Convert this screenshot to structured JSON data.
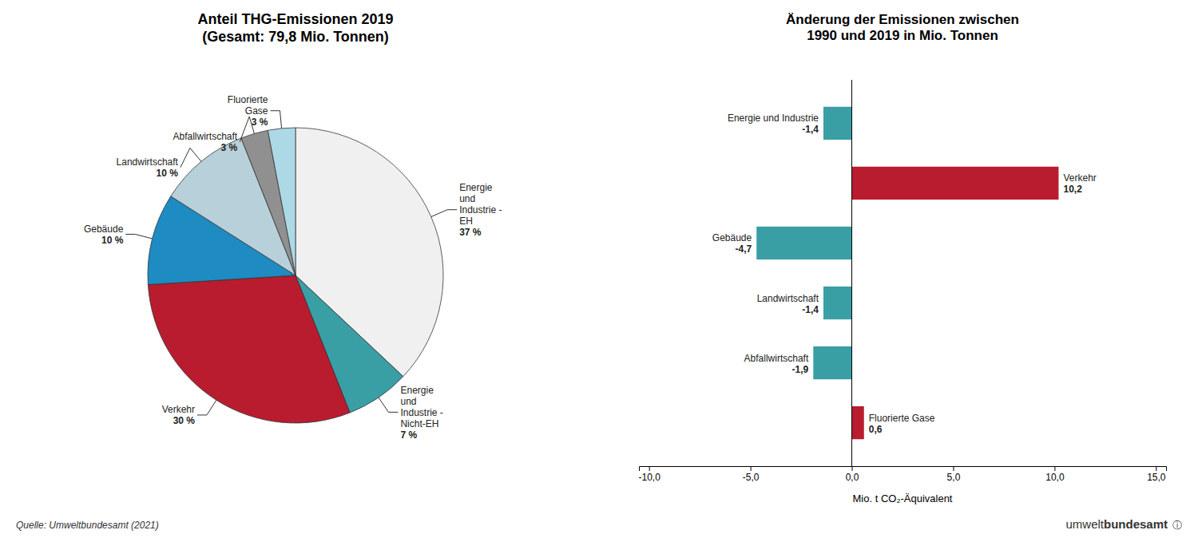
{
  "chart_data": [
    {
      "type": "pie",
      "title": "Anteil THG-Emissionen 2019\n(Gesamt: 79,8 Mio. Tonnen)",
      "categories": [
        "Energie\nund\nIndustrie -\nEH",
        "Energie\nund\nIndustrie -\nNicht-EH",
        "Verkehr",
        "Gebäude",
        "Landwirtschaft",
        "Abfallwirtschaft",
        "Fluorierte\nGase"
      ],
      "values": [
        37,
        7,
        30,
        10,
        10,
        3,
        3
      ],
      "value_labels": [
        "37 %",
        "7 %",
        "30 %",
        "10 %",
        "10 %",
        "3 %",
        "3 %"
      ],
      "data_labels": true,
      "colors": [
        "#f0f0f0",
        "#3a9ea5",
        "#b81c2e",
        "#1e8bc3",
        "#b8d0da",
        "#909090",
        "#add8e6"
      ],
      "annotations": [
        "Quelle: Umweltbundesamt (2021)",
        "umwelt",
        "bundesamt",
        "ⓘ"
      ]
    },
    {
      "type": "bar",
      "orientation": "horizontal",
      "title": "Änderung der Emissionen zwischen\n1990 und 2019 in Mio. Tonnen",
      "categories": [
        "Fluorierte Gase",
        "Abfallwirtschaft",
        "Landwirtschaft",
        "Gebäude",
        "Verkehr",
        "Energie und Industrie"
      ],
      "values": [
        0.6,
        -1.9,
        -1.4,
        -4.7,
        10.2,
        -1.4
      ],
      "value_labels": [
        "0,6",
        "-1,9",
        "-1,4",
        "-4,7",
        "10,2",
        "-1,4"
      ],
      "data_labels": true,
      "colors": [
        "#b81c2e",
        "#3a9ea5",
        "#3a9ea5",
        "#3a9ea5",
        "#b81c2e",
        "#3a9ea5"
      ],
      "x_label": "Mio. t CO₂-Äquivalent",
      "xlim": [
        -10.5,
        15.5
      ],
      "xticks": [
        {
          "value": -10.0,
          "label": "-10,0"
        },
        {
          "value": -5.0,
          "label": "-5,0"
        },
        {
          "value": 0.0,
          "label": "0,0"
        },
        {
          "value": 5.0,
          "label": "5,0"
        },
        {
          "value": 10.0,
          "label": "10,0"
        },
        {
          "value": 15.0,
          "label": "15,0"
        }
      ],
      "tick_labels": "x"
    }
  ]
}
